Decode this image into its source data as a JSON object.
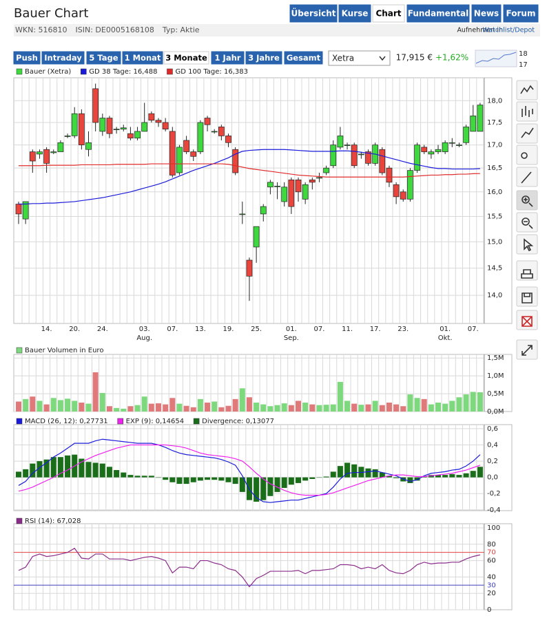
{
  "header": {
    "title": "Bauer Chart",
    "tabs": [
      "Übersicht",
      "Kurse",
      "Chart",
      "Fundamental",
      "News",
      "Forum"
    ],
    "active_tab": "Chart",
    "info": [
      "WKN: 516810",
      "ISIN: DE0005168108",
      "Typ: Aktie"
    ],
    "watchlist_prefix": "Aufnehmen in",
    "watchlist_link": "Watchlist/Depot"
  },
  "controls": {
    "periods": [
      "Push",
      "Intraday",
      "5 Tage",
      "1 Monat",
      "3 Monate",
      "1 Jahr",
      "3 Jahre",
      "Gesamt"
    ],
    "active_period": "3 Monate",
    "exchange": "Xetra",
    "price": "17,915 €",
    "change": "+1,62%",
    "mini_labels": [
      "18",
      "17"
    ]
  },
  "chart_data": [
    {
      "type": "candlestick",
      "name": "Bauer (Xetra)",
      "color_up": "#3fd83f",
      "color_down": "#e8453c",
      "log": true,
      "grid": true,
      "categories": [
        null,
        null,
        null,
        null,
        "14.",
        null,
        null,
        null,
        "20.",
        null,
        null,
        null,
        "24.",
        null,
        null,
        null,
        null,
        null,
        "03.\nAug.",
        null,
        null,
        null,
        "07.",
        null,
        null,
        null,
        "13.",
        null,
        null,
        null,
        "19.",
        null,
        null,
        null,
        "25.",
        null,
        null,
        null,
        null,
        "01.\nSep.",
        null,
        null,
        null,
        "07.",
        null,
        null,
        null,
        "11.",
        null,
        null,
        null,
        "17.",
        null,
        null,
        null,
        "23.",
        null,
        null,
        null,
        null,
        null,
        "01.\nOkt.",
        null,
        null,
        null,
        "07.",
        null
      ],
      "open": [
        15.75,
        15.45,
        16.85,
        16.8,
        16.9,
        16.83,
        16.85,
        17.2,
        17.2,
        17.7,
        16.9,
        18.28,
        17.3,
        17.6,
        17.35,
        17.35,
        17.25,
        17.15,
        17.3,
        17.7,
        17.55,
        17.5,
        17.3,
        16.4,
        17.1,
        16.85,
        16.85,
        17.6,
        17.3,
        17.4,
        17.2,
        16.9,
        15.55,
        14.65,
        14.9,
        15.55,
        16.1,
        16.12,
        15.8,
        16.25,
        16.25,
        15.85,
        16.25,
        16.3,
        16.4,
        16.55,
        16.95,
        17.0,
        17.0,
        16.8,
        16.85,
        16.6,
        16.9,
        16.5,
        16.15,
        16.0,
        15.85,
        16.45,
        16.95,
        16.8,
        16.85,
        16.85,
        17.05,
        17.0,
        17.05,
        17.3,
        17.3
      ],
      "high": [
        15.8,
        15.8,
        16.9,
        16.9,
        16.95,
        16.9,
        17.1,
        17.25,
        17.85,
        17.8,
        17.3,
        18.4,
        17.7,
        17.65,
        17.4,
        17.45,
        17.4,
        17.4,
        17.95,
        17.75,
        17.6,
        17.6,
        17.4,
        17.0,
        17.2,
        16.9,
        17.55,
        17.65,
        17.35,
        17.45,
        17.25,
        16.95,
        15.8,
        14.7,
        15.3,
        15.75,
        16.25,
        16.2,
        16.2,
        16.3,
        16.3,
        16.2,
        16.3,
        16.4,
        16.55,
        17.1,
        17.4,
        17.05,
        17.05,
        16.85,
        16.9,
        17.05,
        16.95,
        16.55,
        16.2,
        16.05,
        16.5,
        17.05,
        17.0,
        16.9,
        17.0,
        17.1,
        17.15,
        17.05,
        17.45,
        17.9,
        17.95
      ],
      "low": [
        15.35,
        15.35,
        16.4,
        16.7,
        16.4,
        16.8,
        16.85,
        17.15,
        17.15,
        16.9,
        16.75,
        17.3,
        17.2,
        17.15,
        17.25,
        17.3,
        17.1,
        17.1,
        17.3,
        17.5,
        17.4,
        17.3,
        16.3,
        16.35,
        16.8,
        16.65,
        16.8,
        17.3,
        17.25,
        17.1,
        16.95,
        16.35,
        15.35,
        13.9,
        14.6,
        15.4,
        15.95,
        15.85,
        15.7,
        15.55,
        15.8,
        15.75,
        16.05,
        16.2,
        16.35,
        16.5,
        16.9,
        16.9,
        16.5,
        16.7,
        16.55,
        16.55,
        16.35,
        16.1,
        15.75,
        15.8,
        15.8,
        16.4,
        16.8,
        16.7,
        16.8,
        16.8,
        16.95,
        16.95,
        17.0,
        17.3,
        17.3
      ],
      "close": [
        15.55,
        15.8,
        16.65,
        16.85,
        16.6,
        16.85,
        17.05,
        17.2,
        17.7,
        17.0,
        17.05,
        17.5,
        17.6,
        17.25,
        17.35,
        17.38,
        17.15,
        17.3,
        17.5,
        17.55,
        17.5,
        17.35,
        16.35,
        16.95,
        16.85,
        16.75,
        17.5,
        17.45,
        17.3,
        17.2,
        17.05,
        16.4,
        15.55,
        14.35,
        15.3,
        15.7,
        16.2,
        16.12,
        16.1,
        15.7,
        16.0,
        16.15,
        16.2,
        16.3,
        16.5,
        17.0,
        17.2,
        17.0,
        16.55,
        16.8,
        16.6,
        17.0,
        16.4,
        16.2,
        15.9,
        15.85,
        16.45,
        17.0,
        16.85,
        16.85,
        16.9,
        17.05,
        17.05,
        17.0,
        17.4,
        17.65,
        17.9
      ],
      "series": [
        {
          "name": "GD 38 Tage: 16,488",
          "color": "#1a1adb",
          "values": [
            15.75,
            15.75,
            15.76,
            15.76,
            15.77,
            15.77,
            15.78,
            15.79,
            15.8,
            15.82,
            15.84,
            15.86,
            15.88,
            15.91,
            15.94,
            15.97,
            16.0,
            16.04,
            16.08,
            16.12,
            16.16,
            16.21,
            16.27,
            16.33,
            16.39,
            16.45,
            16.5,
            16.55,
            16.6,
            16.66,
            16.72,
            16.8,
            16.86,
            16.88,
            16.89,
            16.9,
            16.9,
            16.9,
            16.9,
            16.89,
            16.88,
            16.87,
            16.86,
            16.86,
            16.86,
            16.86,
            16.87,
            16.87,
            16.86,
            16.84,
            16.82,
            16.8,
            16.76,
            16.72,
            16.68,
            16.64,
            16.6,
            16.57,
            16.54,
            16.51,
            16.49,
            16.49,
            16.48,
            16.48,
            16.48,
            16.48,
            16.488
          ]
        },
        {
          "name": "GD 100 Tage: 16,383",
          "color": "#e02a2a",
          "values": [
            16.55,
            16.55,
            16.55,
            16.55,
            16.56,
            16.56,
            16.56,
            16.56,
            16.56,
            16.57,
            16.57,
            16.57,
            16.57,
            16.57,
            16.58,
            16.58,
            16.58,
            16.58,
            16.58,
            16.59,
            16.59,
            16.59,
            16.59,
            16.59,
            16.59,
            16.59,
            16.59,
            16.59,
            16.59,
            16.59,
            16.58,
            16.55,
            16.52,
            16.49,
            16.47,
            16.45,
            16.43,
            16.41,
            16.39,
            16.37,
            16.35,
            16.34,
            16.33,
            16.32,
            16.31,
            16.31,
            16.31,
            16.31,
            16.31,
            16.31,
            16.31,
            16.31,
            16.31,
            16.31,
            16.31,
            16.31,
            16.32,
            16.33,
            16.34,
            16.35,
            16.35,
            16.36,
            16.36,
            16.37,
            16.37,
            16.38,
            16.383
          ]
        }
      ],
      "ylim": [
        13.5,
        18.54
      ],
      "yticks": [
        {
          "value": 14,
          "label": "14,0"
        },
        {
          "value": 14.5,
          "label": "14,5"
        },
        {
          "value": 15,
          "label": "15,0"
        },
        {
          "value": 15.5,
          "label": "15,5"
        },
        {
          "value": 16,
          "label": "16,0"
        },
        {
          "value": 16.5,
          "label": "16,5"
        },
        {
          "value": 17,
          "label": "17,0"
        },
        {
          "value": 17.5,
          "label": "17,5"
        },
        {
          "value": 18,
          "label": "18,0"
        }
      ]
    },
    {
      "type": "bar",
      "grid": true,
      "series": [
        {
          "name": "Bauer Volumen in Euro",
          "color_up": "#7ed97e",
          "color_down": "#e07a7a",
          "values": [
            280000,
            350000,
            420000,
            300000,
            200000,
            380000,
            320000,
            360000,
            300000,
            250000,
            220000,
            1100000,
            520000,
            150000,
            100000,
            80000,
            150000,
            180000,
            420000,
            220000,
            230000,
            200000,
            380000,
            220000,
            160000,
            120000,
            350000,
            250000,
            280000,
            120000,
            160000,
            350000,
            650000,
            400000,
            250000,
            200000,
            150000,
            180000,
            230000,
            180000,
            300000,
            250000,
            200000,
            180000,
            190000,
            200000,
            830000,
            300000,
            220000,
            190000,
            200000,
            300000,
            180000,
            250000,
            200000,
            150000,
            480000,
            380000,
            350000,
            200000,
            250000,
            220000,
            300000,
            400000,
            480000,
            550000,
            540000
          ]
        }
      ],
      "ylim": [
        0,
        1600000
      ],
      "yticks": [
        {
          "value": 0,
          "label": "0,0M"
        },
        {
          "value": 500000,
          "label": "0,5M"
        },
        {
          "value": 1000000,
          "label": "1,0M"
        },
        {
          "value": 1500000,
          "label": "1,5M"
        }
      ]
    },
    {
      "type": "line",
      "grid": true,
      "series": [
        {
          "name": "MACD (26, 12): 0,27731",
          "color": "#1a1adb",
          "values": [
            -0.1,
            -0.05,
            0.05,
            0.12,
            0.18,
            0.25,
            0.3,
            0.36,
            0.42,
            0.42,
            0.42,
            0.45,
            0.47,
            0.46,
            0.45,
            0.44,
            0.43,
            0.42,
            0.42,
            0.42,
            0.4,
            0.37,
            0.33,
            0.3,
            0.28,
            0.27,
            0.26,
            0.25,
            0.24,
            0.22,
            0.19,
            0.15,
            0.02,
            -0.15,
            -0.25,
            -0.3,
            -0.31,
            -0.3,
            -0.29,
            -0.28,
            -0.28,
            -0.26,
            -0.24,
            -0.22,
            -0.2,
            -0.12,
            -0.02,
            0.05,
            0.06,
            0.06,
            0.07,
            0.08,
            0.06,
            0.04,
            0.02,
            -0.02,
            -0.05,
            -0.03,
            0.02,
            0.05,
            0.06,
            0.07,
            0.09,
            0.1,
            0.14,
            0.2,
            0.28
          ]
        },
        {
          "name": "EXP (9): 0,14654",
          "color": "#ee22ee",
          "values": [
            -0.17,
            -0.15,
            -0.12,
            -0.08,
            -0.04,
            0.0,
            0.05,
            0.09,
            0.14,
            0.19,
            0.23,
            0.27,
            0.3,
            0.33,
            0.36,
            0.38,
            0.4,
            0.4,
            0.4,
            0.4,
            0.4,
            0.4,
            0.39,
            0.38,
            0.36,
            0.33,
            0.3,
            0.28,
            0.27,
            0.26,
            0.25,
            0.23,
            0.2,
            0.13,
            0.05,
            -0.02,
            -0.08,
            -0.12,
            -0.16,
            -0.19,
            -0.21,
            -0.22,
            -0.22,
            -0.22,
            -0.21,
            -0.19,
            -0.16,
            -0.13,
            -0.1,
            -0.07,
            -0.04,
            -0.02,
            0.0,
            0.02,
            0.03,
            0.03,
            0.02,
            0.01,
            0.01,
            0.02,
            0.03,
            0.04,
            0.05,
            0.07,
            0.09,
            0.12,
            0.15
          ]
        },
        {
          "name": "Divergence: 0,13077",
          "color": "#1a6e1a",
          "type": "bar",
          "values": [
            0.07,
            0.1,
            0.17,
            0.2,
            0.22,
            0.25,
            0.25,
            0.27,
            0.28,
            0.23,
            0.19,
            0.18,
            0.17,
            0.13,
            0.09,
            0.06,
            0.03,
            0.02,
            0.02,
            0.02,
            0.0,
            -0.03,
            -0.06,
            -0.08,
            -0.08,
            -0.06,
            -0.04,
            -0.03,
            -0.03,
            -0.04,
            -0.06,
            -0.08,
            -0.18,
            -0.28,
            -0.3,
            -0.28,
            -0.23,
            -0.18,
            -0.13,
            -0.09,
            -0.07,
            -0.04,
            -0.02,
            0.0,
            0.01,
            0.07,
            0.14,
            0.18,
            0.16,
            0.13,
            0.11,
            0.1,
            0.06,
            0.02,
            -0.01,
            -0.05,
            -0.07,
            -0.04,
            0.01,
            0.03,
            0.03,
            0.03,
            0.04,
            0.03,
            0.05,
            0.08,
            0.13
          ]
        }
      ],
      "ylim": [
        -0.41,
        0.65
      ],
      "yticks": [
        {
          "value": -0.4,
          "label": "-0,4"
        },
        {
          "value": -0.2,
          "label": "-0,2"
        },
        {
          "value": 0,
          "label": "0,0"
        },
        {
          "value": 0.2,
          "label": "0,2"
        },
        {
          "value": 0.4,
          "label": "0,4"
        },
        {
          "value": 0.6,
          "label": "0,6"
        }
      ]
    },
    {
      "type": "line",
      "grid": true,
      "series": [
        {
          "name": "RSI (14): 67,028",
          "color": "#8b2b8b",
          "values": [
            48,
            52,
            65,
            68,
            65,
            66,
            68,
            70,
            75,
            63,
            62,
            68,
            68,
            62,
            62,
            62,
            60,
            62,
            64,
            65,
            63,
            60,
            45,
            52,
            52,
            50,
            60,
            60,
            57,
            55,
            50,
            48,
            40,
            28,
            38,
            42,
            47,
            47,
            47,
            47,
            48,
            44,
            48,
            48,
            49,
            50,
            55,
            55,
            54,
            50,
            52,
            50,
            55,
            48,
            45,
            44,
            48,
            55,
            58,
            56,
            57,
            57,
            58,
            58,
            62,
            65,
            67
          ]
        }
      ],
      "ref_lines": [
        {
          "value": 70,
          "color": "#e04040"
        },
        {
          "value": 30,
          "color": "#4040c0"
        }
      ],
      "ylim": [
        0,
        105
      ],
      "yticks": [
        0,
        20,
        40,
        60,
        80,
        100
      ]
    }
  ]
}
